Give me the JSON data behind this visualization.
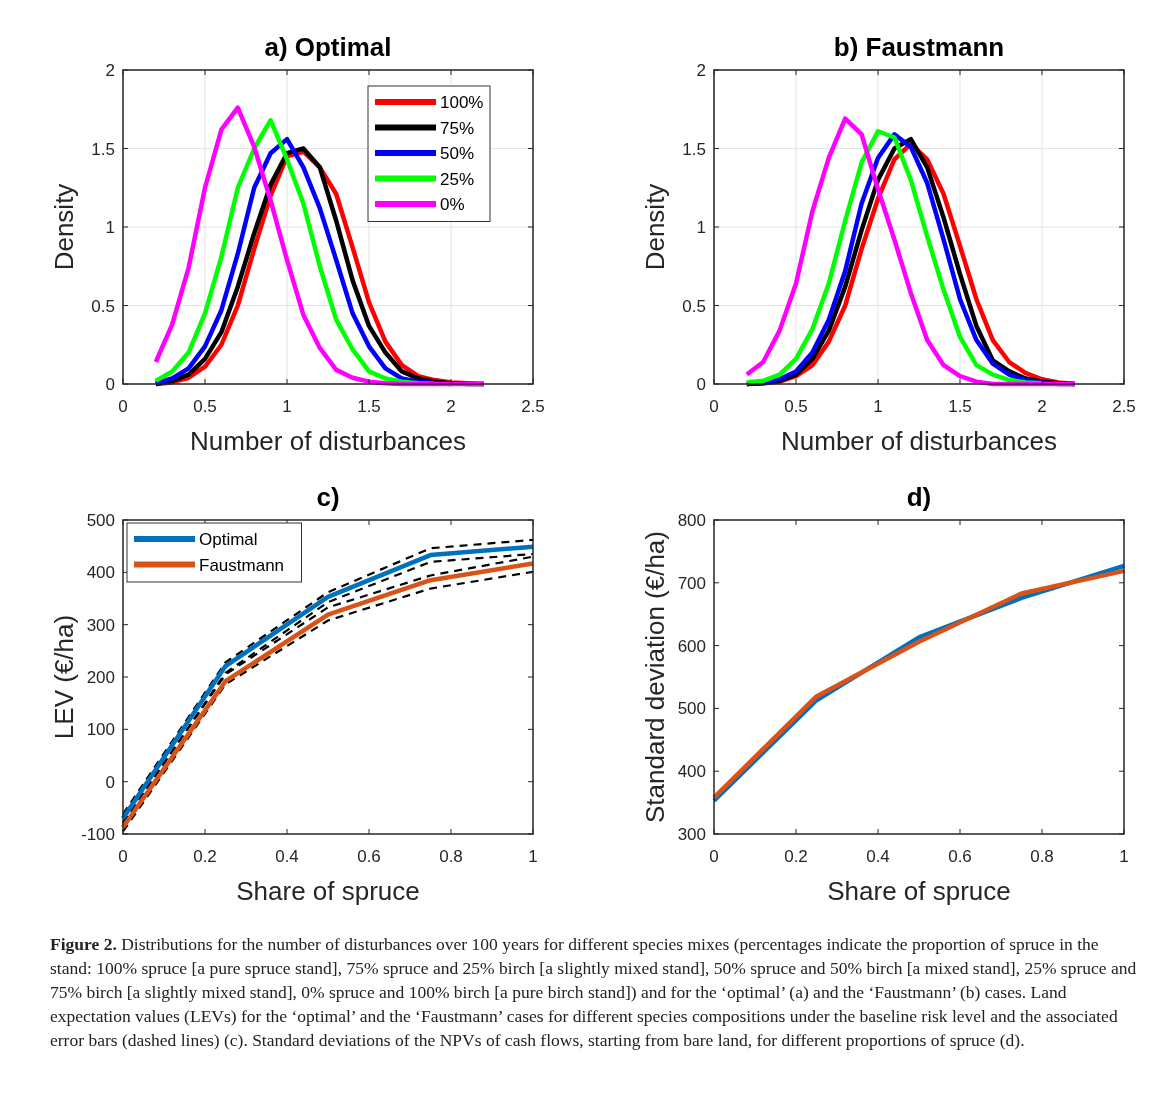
{
  "chart_data": [
    {
      "type": "line",
      "title": "a) Optimal",
      "xlabel": "Number of disturbances",
      "ylabel": "Density",
      "x": [
        0.2,
        0.3,
        0.4,
        0.5,
        0.6,
        0.7,
        0.8,
        0.9,
        1.0,
        1.1,
        1.2,
        1.3,
        1.4,
        1.5,
        1.6,
        1.7,
        1.8,
        1.9,
        2.0,
        2.1,
        2.2
      ],
      "xlim": [
        0,
        2.5
      ],
      "xticks": [
        0,
        0.5,
        1,
        1.5,
        2,
        2.5
      ],
      "ylim": [
        0,
        2
      ],
      "yticks": [
        0,
        0.5,
        1,
        1.5,
        2
      ],
      "grid": true,
      "legend": "top right",
      "line_style": "solid",
      "series": [
        {
          "name": "100%",
          "color": "#ff0000",
          "values": [
            0,
            0.01,
            0.04,
            0.11,
            0.25,
            0.5,
            0.86,
            1.2,
            1.45,
            1.48,
            1.38,
            1.21,
            0.87,
            0.52,
            0.27,
            0.12,
            0.05,
            0.025,
            0.01,
            0.005,
            0
          ]
        },
        {
          "name": "75%",
          "color": "#000000",
          "values": [
            0,
            0.02,
            0.06,
            0.16,
            0.33,
            0.62,
            0.96,
            1.27,
            1.47,
            1.5,
            1.38,
            1.04,
            0.66,
            0.37,
            0.2,
            0.08,
            0.035,
            0.015,
            0.005,
            0,
            0
          ]
        },
        {
          "name": "50%",
          "color": "#0000ff",
          "values": [
            0.005,
            0.035,
            0.1,
            0.24,
            0.47,
            0.83,
            1.25,
            1.47,
            1.56,
            1.38,
            1.12,
            0.79,
            0.45,
            0.24,
            0.1,
            0.035,
            0.015,
            0.005,
            0,
            null,
            null
          ]
        },
        {
          "name": "25%",
          "color": "#00ff00",
          "values": [
            0.02,
            0.08,
            0.2,
            0.45,
            0.81,
            1.25,
            1.5,
            1.68,
            1.43,
            1.15,
            0.75,
            0.41,
            0.22,
            0.08,
            0.035,
            0.015,
            0.005,
            0,
            null,
            null,
            null
          ]
        },
        {
          "name": "0%",
          "color": "#ff00ff",
          "values": [
            0.14,
            0.38,
            0.74,
            1.25,
            1.62,
            1.76,
            1.51,
            1.17,
            0.79,
            0.44,
            0.23,
            0.09,
            0.04,
            0.015,
            0.005,
            0,
            0,
            0,
            0,
            0,
            0
          ]
        }
      ]
    },
    {
      "type": "line",
      "title": "b) Faustmann",
      "xlabel": "Number of disturbances",
      "ylabel": "Density",
      "x": [
        0.2,
        0.3,
        0.4,
        0.5,
        0.6,
        0.7,
        0.8,
        0.9,
        1.0,
        1.1,
        1.2,
        1.3,
        1.4,
        1.5,
        1.6,
        1.7,
        1.8,
        1.9,
        2.0,
        2.1,
        2.2
      ],
      "xlim": [
        0,
        2.5
      ],
      "xticks": [
        0,
        0.5,
        1,
        1.5,
        2,
        2.5
      ],
      "ylim": [
        0,
        2
      ],
      "yticks": [
        0,
        0.5,
        1,
        1.5,
        2
      ],
      "grid": true,
      "line_style": "solid",
      "series": [
        {
          "color": "#ff0000",
          "values": [
            0,
            0.005,
            0.015,
            0.05,
            0.12,
            0.27,
            0.5,
            0.86,
            1.18,
            1.43,
            1.53,
            1.43,
            1.21,
            0.88,
            0.54,
            0.28,
            0.14,
            0.07,
            0.03,
            0.01,
            0
          ]
        },
        {
          "color": "#000000",
          "values": [
            0,
            0.005,
            0.02,
            0.06,
            0.16,
            0.34,
            0.62,
            0.98,
            1.3,
            1.5,
            1.56,
            1.38,
            1.06,
            0.7,
            0.37,
            0.15,
            0.08,
            0.035,
            0.015,
            0.005,
            0
          ]
        },
        {
          "color": "#0000ff",
          "values": [
            0,
            0.01,
            0.03,
            0.08,
            0.2,
            0.41,
            0.72,
            1.15,
            1.44,
            1.59,
            1.51,
            1.28,
            0.92,
            0.54,
            0.28,
            0.13,
            0.06,
            0.025,
            0.01,
            0,
            0
          ]
        },
        {
          "color": "#00ff00",
          "values": [
            0.01,
            0.02,
            0.06,
            0.16,
            0.35,
            0.64,
            1.04,
            1.41,
            1.61,
            1.57,
            1.3,
            0.94,
            0.6,
            0.3,
            0.12,
            0.06,
            0.025,
            0.01,
            0.005,
            null,
            null
          ]
        },
        {
          "color": "#ff00ff",
          "values": [
            0.06,
            0.14,
            0.34,
            0.64,
            1.1,
            1.44,
            1.69,
            1.59,
            1.24,
            0.92,
            0.58,
            0.28,
            0.12,
            0.05,
            0.015,
            0,
            0,
            0,
            0,
            0,
            0
          ]
        }
      ]
    },
    {
      "type": "line",
      "title": "c)",
      "xlabel": "Share of spruce",
      "ylabel": "LEV (€/ha)",
      "x": [
        0,
        0.25,
        0.5,
        0.75,
        1
      ],
      "xlim": [
        0,
        1
      ],
      "xticks": [
        0,
        0.2,
        0.4,
        0.6,
        0.8,
        1
      ],
      "ylim": [
        -100,
        500
      ],
      "yticks": [
        -100,
        0,
        100,
        200,
        300,
        400,
        500
      ],
      "grid": false,
      "legend": "top left",
      "line_style": "solid",
      "series": [
        {
          "color": "#000000",
          "line_style": "dashed",
          "values": [
            -62,
            228,
            362,
            446,
            462
          ]
        },
        {
          "color": "#000000",
          "line_style": "dashed",
          "values": [
            -80,
            208,
            343,
            420,
            435
          ]
        },
        {
          "color": "#000000",
          "line_style": "dashed",
          "values": [
            -78,
            205,
            333,
            394,
            430
          ]
        },
        {
          "color": "#000000",
          "line_style": "dashed",
          "values": [
            -95,
            186,
            308,
            369,
            401
          ]
        },
        {
          "name": "Optimal",
          "color": "#0072bd",
          "values": [
            -70,
            221,
            353,
            433,
            449
          ]
        },
        {
          "name": "Faustmann",
          "color": "#d95319",
          "values": [
            -87,
            192,
            319,
            385,
            417
          ]
        }
      ]
    },
    {
      "type": "line",
      "title": "d)",
      "xlabel": "Share of spruce",
      "ylabel": "Standard deviation (€/ha)",
      "x": [
        0,
        0.25,
        0.5,
        0.75,
        1
      ],
      "xlim": [
        0,
        1
      ],
      "xticks": [
        0,
        0.2,
        0.4,
        0.6,
        0.8,
        1
      ],
      "ylim": [
        300,
        800
      ],
      "yticks": [
        300,
        400,
        500,
        600,
        700,
        800
      ],
      "grid": false,
      "line_style": "solid",
      "series": [
        {
          "color": "#0072bd",
          "values": [
            353,
            513,
            613,
            676,
            727
          ]
        },
        {
          "color": "#d95319",
          "values": [
            358,
            519,
            606,
            683,
            719
          ]
        }
      ],
      "annotations": [
        "Figure 2.",
        "Distributions for the number of disturbances over 100 years for different species mixes (percentages indicate the proportion of spruce in the stand: 100% spruce [a pure spruce stand], 75% spruce and 25% birch [a slightly mixed stand], 50% spruce and 50% birch [a mixed stand], 25% spruce and 75% birch [a slightly mixed stand], 0% spruce and 100% birch [a pure birch stand]) and for the ‘optimal’ (a) and the ‘Faustmann’ (b) cases. Land expectation values (LEVs) for the ‘optimal’ and the ‘Faustmann’ cases for different species compositions under the baseline risk level and the associated error bars (dashed lines) (c). Standard deviations of the NPVs of cash flows, starting from bare land, for different proportions of spruce (d)."
      ]
    }
  ]
}
